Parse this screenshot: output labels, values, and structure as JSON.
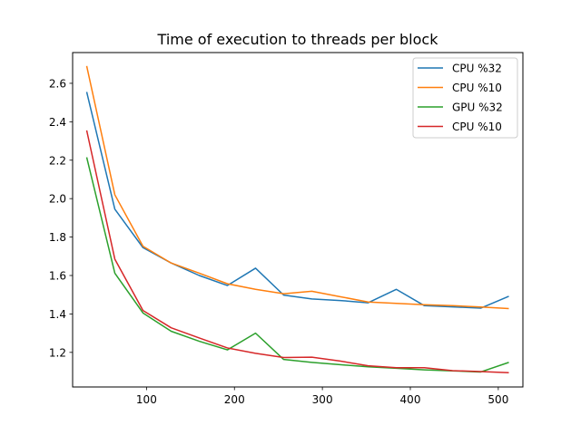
{
  "chart_data": {
    "type": "line",
    "title": "Time of execution to threads per block",
    "xlabel": "",
    "ylabel": "",
    "xlim": [
      16.0,
      528.0
    ],
    "ylim": [
      1.02,
      2.76
    ],
    "x_ticks": [
      100,
      200,
      300,
      400,
      500
    ],
    "y_ticks": [
      1.2,
      1.4,
      1.6,
      1.8,
      2.0,
      2.2,
      2.4,
      2.6
    ],
    "grid": false,
    "legend_position": "top-right",
    "x": [
      32,
      64,
      96,
      128,
      160,
      192,
      224,
      256,
      288,
      320,
      352,
      384,
      416,
      448,
      480,
      512
    ],
    "series": [
      {
        "name": "CPU %32",
        "color": "#1f77b4",
        "values": [
          2.555,
          1.945,
          1.745,
          1.665,
          1.6,
          1.548,
          1.638,
          1.498,
          1.478,
          1.47,
          1.458,
          1.528,
          1.443,
          1.437,
          1.43,
          1.492
        ]
      },
      {
        "name": "CPU %10",
        "color": "#ff7f0e",
        "values": [
          2.69,
          2.02,
          1.752,
          1.665,
          1.612,
          1.557,
          1.528,
          1.505,
          1.518,
          1.49,
          1.462,
          1.455,
          1.448,
          1.443,
          1.436,
          1.428
        ]
      },
      {
        "name": "GPU %32",
        "color": "#2ca02c",
        "values": [
          2.215,
          1.612,
          1.405,
          1.31,
          1.258,
          1.213,
          1.3,
          1.163,
          1.148,
          1.136,
          1.125,
          1.117,
          1.109,
          1.104,
          1.098,
          1.148
        ]
      },
      {
        "name": "CPU %10",
        "color": "#d62728",
        "values": [
          2.355,
          1.685,
          1.418,
          1.328,
          1.275,
          1.223,
          1.195,
          1.173,
          1.175,
          1.155,
          1.13,
          1.12,
          1.12,
          1.105,
          1.1,
          1.094
        ]
      }
    ]
  }
}
